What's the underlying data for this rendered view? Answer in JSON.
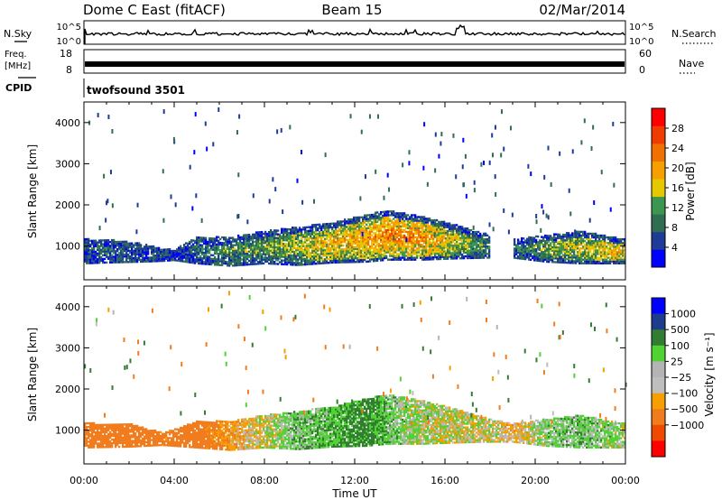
{
  "header": {
    "station": "Dome C East (fitACF)",
    "beam": "Beam 15",
    "date": "02/Mar/2014"
  },
  "strip_labels": {
    "nsky": "N.Sky",
    "nsearch": "N.Search",
    "freq_line1": "Freq.",
    "freq_line2": "[MHz]",
    "nave": "Nave",
    "cpid": "CPID",
    "cpid_value": "twofsound 3501",
    "noise_top_left": "10^5",
    "noise_bottom_left": "10^0",
    "noise_top_right": "10^5",
    "noise_bottom_right": "10^0",
    "freq_top": "18",
    "freq_bottom": "8",
    "nave_top": "60",
    "nave_bottom": "0"
  },
  "colors": {
    "power_scale": [
      "#0000ff",
      "#1e3c96",
      "#2f6e50",
      "#3c9650",
      "#e6c800",
      "#f5a000",
      "#f07000",
      "#f03c00",
      "#ff0000"
    ],
    "velocity_scale": [
      "#ff0000",
      "#f04a00",
      "#f07c1e",
      "#f5a000",
      "#bebebe",
      "#b4b4b4",
      "#50d232",
      "#327d32",
      "#1e3c8c",
      "#0000ff"
    ]
  },
  "chart_data": [
    {
      "type": "heatmap",
      "panel": "power",
      "xlabel": "",
      "ylabel": "Slant Range [km]",
      "xlim": [
        0,
        24
      ],
      "ylim": [
        180,
        4500
      ],
      "yticks": [
        "1000",
        "2000",
        "3000",
        "4000"
      ],
      "colorbar": {
        "label": "Power [dB]",
        "range": [
          0,
          32
        ],
        "ticks": [
          "4",
          "8",
          "12",
          "16",
          "20",
          "24",
          "28"
        ]
      },
      "echo_band": [
        {
          "t": 0.0,
          "lo": 560,
          "hi": 1150,
          "v": 12
        },
        {
          "t": 1.0,
          "lo": 580,
          "hi": 1150,
          "v": 14
        },
        {
          "t": 2.5,
          "lo": 600,
          "hi": 1050,
          "v": 11
        },
        {
          "t": 3.5,
          "lo": 620,
          "hi": 920,
          "v": 12
        },
        {
          "t": 4.0,
          "lo": 640,
          "hi": 900,
          "v": 8
        },
        {
          "t": 5.0,
          "lo": 560,
          "hi": 1200,
          "v": 14
        },
        {
          "t": 6.5,
          "lo": 500,
          "hi": 1200,
          "v": 16
        },
        {
          "t": 8.0,
          "lo": 560,
          "hi": 1350,
          "v": 18
        },
        {
          "t": 9.5,
          "lo": 520,
          "hi": 1450,
          "v": 20
        },
        {
          "t": 11.0,
          "lo": 580,
          "hi": 1550,
          "v": 24
        },
        {
          "t": 12.5,
          "lo": 600,
          "hi": 1750,
          "v": 26
        },
        {
          "t": 13.5,
          "lo": 650,
          "hi": 1850,
          "v": 28
        },
        {
          "t": 15.0,
          "lo": 650,
          "hi": 1700,
          "v": 26
        },
        {
          "t": 16.5,
          "lo": 680,
          "hi": 1500,
          "v": 22
        },
        {
          "t": 18.0,
          "lo": 700,
          "hi": 1250,
          "v": 14
        },
        {
          "t": 18.5,
          "lo": 0,
          "hi": 0,
          "v": 0
        },
        {
          "t": 19.0,
          "lo": 700,
          "hi": 1150,
          "v": 12
        },
        {
          "t": 20.5,
          "lo": 600,
          "hi": 1250,
          "v": 18
        },
        {
          "t": 22.0,
          "lo": 560,
          "hi": 1350,
          "v": 20
        },
        {
          "t": 24.0,
          "lo": 560,
          "hi": 1150,
          "v": 24
        }
      ]
    },
    {
      "type": "heatmap",
      "panel": "velocity",
      "xlabel": "Time UT",
      "ylabel": "Slant Range [km]",
      "xlim": [
        0,
        24
      ],
      "ylim": [
        180,
        4500
      ],
      "xticks": [
        "00:00",
        "04:00",
        "08:00",
        "12:00",
        "16:00",
        "20:00",
        "00:00"
      ],
      "yticks": [
        "1000",
        "2000",
        "3000",
        "4000"
      ],
      "colorbar": {
        "label": "Velocity [m s⁻¹]",
        "ticks": [
          "1000",
          "500",
          "100",
          "25",
          "−25",
          "−100",
          "−500",
          "−1000"
        ]
      },
      "echo_band": [
        {
          "t": 0.0,
          "lo": 560,
          "hi": 1150,
          "v": -300
        },
        {
          "t": 2.0,
          "lo": 580,
          "hi": 1150,
          "v": -300
        },
        {
          "t": 3.5,
          "lo": 620,
          "hi": 920,
          "v": -150
        },
        {
          "t": 5.0,
          "lo": 560,
          "hi": 1200,
          "v": -200
        },
        {
          "t": 6.5,
          "lo": 500,
          "hi": 1200,
          "v": -80
        },
        {
          "t": 8.0,
          "lo": 560,
          "hi": 1350,
          "v": 0
        },
        {
          "t": 9.5,
          "lo": 520,
          "hi": 1450,
          "v": 60
        },
        {
          "t": 11.0,
          "lo": 580,
          "hi": 1550,
          "v": 80
        },
        {
          "t": 12.5,
          "lo": 600,
          "hi": 1750,
          "v": 150
        },
        {
          "t": 13.5,
          "lo": 650,
          "hi": 1850,
          "v": 60
        },
        {
          "t": 15.0,
          "lo": 650,
          "hi": 1700,
          "v": 10
        },
        {
          "t": 16.5,
          "lo": 680,
          "hi": 1500,
          "v": -10
        },
        {
          "t": 18.0,
          "lo": 700,
          "hi": 1250,
          "v": 0
        },
        {
          "t": 19.0,
          "lo": 700,
          "hi": 1150,
          "v": -60
        },
        {
          "t": 20.5,
          "lo": 600,
          "hi": 1250,
          "v": 40
        },
        {
          "t": 22.0,
          "lo": 560,
          "hi": 1350,
          "v": 60
        },
        {
          "t": 24.0,
          "lo": 560,
          "hi": 1150,
          "v": 20
        }
      ]
    }
  ]
}
